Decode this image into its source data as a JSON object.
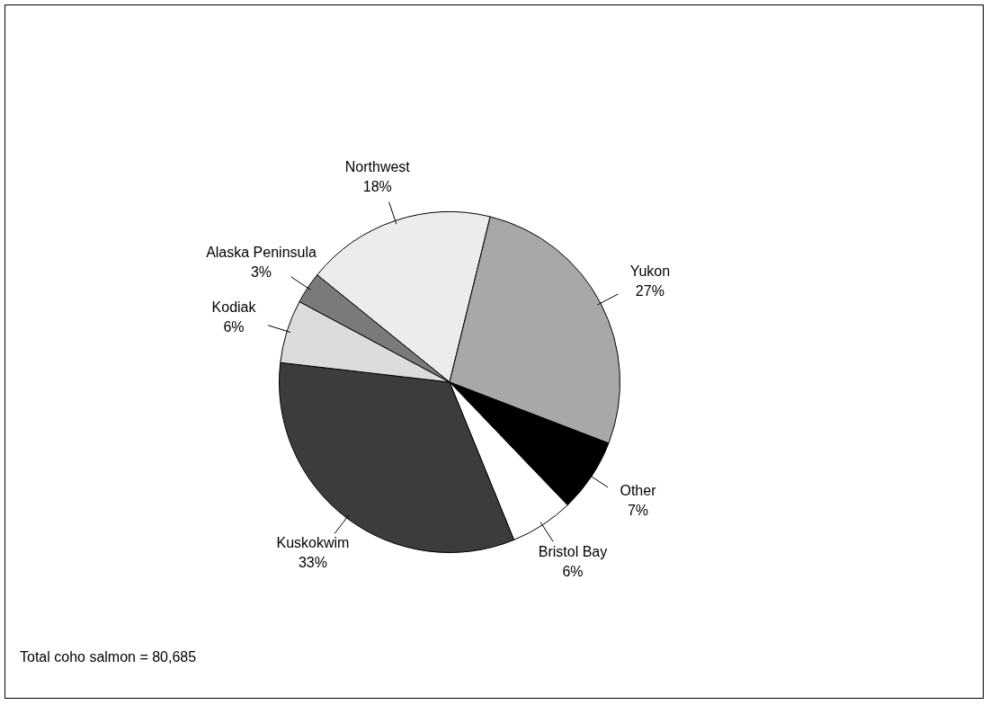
{
  "chart_data": {
    "type": "pie",
    "categories": [
      "Northwest",
      "Yukon",
      "Other",
      "Bristol Bay",
      "Kuskokwim",
      "Kodiak",
      "Alaska Peninsula"
    ],
    "values": [
      18,
      27,
      7,
      6,
      33,
      6,
      3
    ],
    "value_labels": [
      "18%",
      "27%",
      "7%",
      "6%",
      "33%",
      "6%",
      "3%"
    ],
    "colors": [
      "#ececec",
      "#a8a8a8",
      "#000000",
      "#ffffff",
      "#3c3c3c",
      "#dcdcdc",
      "#7a7a7a"
    ],
    "legend": false,
    "annotations": [
      "Total coho salmon = 80,685"
    ]
  }
}
